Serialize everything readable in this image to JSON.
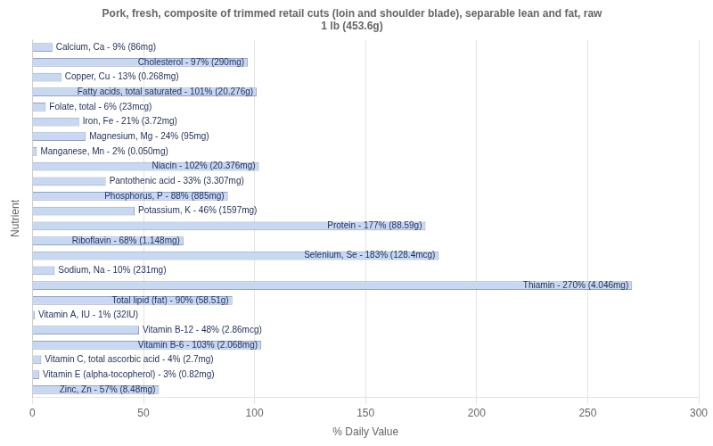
{
  "chart_data": {
    "type": "bar",
    "orientation": "horizontal",
    "title": "Pork, fresh, composite of trimmed retail cuts (loin and shoulder blade), separable lean and fat, raw\n1 lb (453.6g)",
    "xlabel": "% Daily Value",
    "ylabel": "Nutrient",
    "categories": [
      "Calcium, Ca - 9% (86mg)",
      "Cholesterol - 97% (290mg)",
      "Copper, Cu - 13% (0.268mg)",
      "Fatty acids, total saturated - 101% (20.276g)",
      "Folate, total - 6% (23mcg)",
      "Iron, Fe - 21% (3.72mg)",
      "Magnesium, Mg - 24% (95mg)",
      "Manganese, Mn - 2% (0.050mg)",
      "Niacin - 102% (20.376mg)",
      "Pantothenic acid - 33% (3.307mg)",
      "Phosphorus, P - 88% (885mg)",
      "Potassium, K - 46% (1597mg)",
      "Protein - 177% (88.59g)",
      "Riboflavin - 68% (1.148mg)",
      "Selenium, Se - 183% (128.4mcg)",
      "Sodium, Na - 10% (231mg)",
      "Thiamin - 270% (4.046mg)",
      "Total lipid (fat) - 90% (58.51g)",
      "Vitamin A, IU - 1% (32IU)",
      "Vitamin B-12 - 48% (2.86mcg)",
      "Vitamin B-6 - 103% (2.068mg)",
      "Vitamin C, total ascorbic acid - 4% (2.7mg)",
      "Vitamin E (alpha-tocopherol) - 3% (0.82mg)",
      "Zinc, Zn - 57% (8.48mg)"
    ],
    "values": [
      9,
      97,
      13,
      101,
      6,
      21,
      24,
      2,
      102,
      33,
      88,
      46,
      177,
      68,
      183,
      10,
      270,
      90,
      1,
      48,
      103,
      4,
      3,
      57
    ],
    "color": "#c8d8f0",
    "xlim": [
      0,
      300
    ],
    "xticks": [
      0,
      50,
      100,
      150,
      200,
      250,
      300
    ],
    "grid": true,
    "tick_labels": "x"
  }
}
